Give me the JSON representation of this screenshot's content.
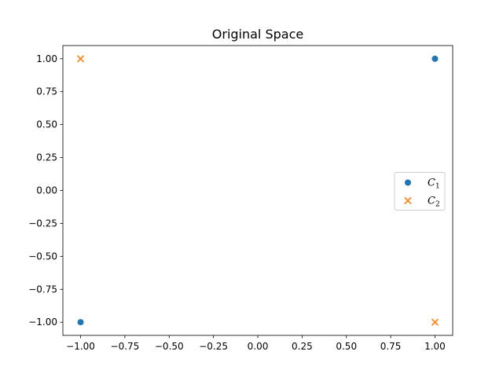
{
  "chart_data": {
    "type": "scatter",
    "title": "Original Space",
    "xlabel": "",
    "ylabel": "",
    "xlim": [
      -1.1,
      1.1
    ],
    "ylim": [
      -1.1,
      1.1
    ],
    "xticks": [
      -1.0,
      -0.75,
      -0.5,
      -0.25,
      0.0,
      0.25,
      0.5,
      0.75,
      1.0
    ],
    "yticks": [
      -1.0,
      -0.75,
      -0.5,
      -0.25,
      0.0,
      0.25,
      0.5,
      0.75,
      1.0
    ],
    "xtick_labels": [
      "−1.00",
      "−0.75",
      "−0.50",
      "−0.25",
      "0.00",
      "0.25",
      "0.50",
      "0.75",
      "1.00"
    ],
    "ytick_labels": [
      "−1.00",
      "−0.75",
      "−0.50",
      "−0.25",
      "0.00",
      "0.25",
      "0.50",
      "0.75",
      "1.00"
    ],
    "grid": false,
    "legend_position": "center-right",
    "series": [
      {
        "name": "C",
        "subscript": "1",
        "marker": "circle",
        "color": "#1f77b4",
        "points": [
          [
            1,
            1
          ],
          [
            -1,
            -1
          ]
        ]
      },
      {
        "name": "C",
        "subscript": "2",
        "marker": "x",
        "color": "#ff7f0e",
        "points": [
          [
            -1,
            1
          ],
          [
            1,
            -1
          ]
        ]
      }
    ]
  }
}
